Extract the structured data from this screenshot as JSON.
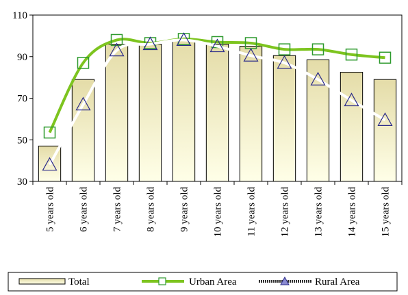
{
  "chart_data": {
    "type": "bar-line",
    "categories": [
      "5 years old",
      "6 years old",
      "7 years old",
      "8 years old",
      "9 years old",
      "10 years old",
      "11 years old",
      "12 years old",
      "13 years old",
      "14 years old",
      "15 years old"
    ],
    "series": [
      {
        "name": "Total",
        "type": "bar",
        "color": "#e4dca8",
        "values": [
          47,
          79,
          96,
          96,
          98,
          96,
          95,
          90.5,
          88.5,
          82.5,
          79
        ]
      },
      {
        "name": "Urban Area",
        "type": "line",
        "color": "#7dc41f",
        "marker": "square",
        "values": [
          53.5,
          87,
          98,
          96.5,
          98.5,
          97,
          96.5,
          93.5,
          93.5,
          91,
          89.5
        ]
      },
      {
        "name": "Rural Area",
        "type": "line",
        "color": "#ffffff",
        "marker": "triangle",
        "values": [
          38,
          67,
          93,
          96,
          98,
          95,
          90.5,
          87,
          79,
          69,
          59.5
        ]
      }
    ],
    "ylim": [
      30,
      110
    ],
    "yticks": [
      30,
      50,
      70,
      90,
      110
    ],
    "grid": false,
    "legend": "bottom"
  }
}
